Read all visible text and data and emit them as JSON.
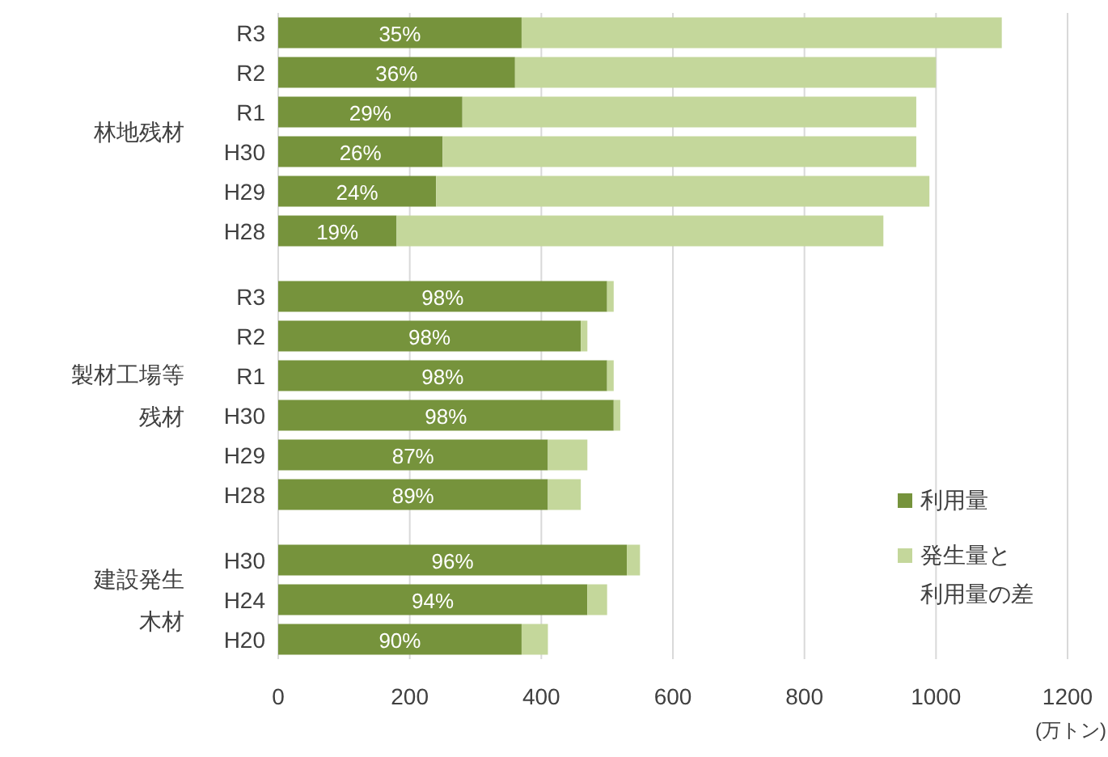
{
  "chart_data": [
    {
      "type": "bar",
      "orientation": "horizontal",
      "stacked": true,
      "ylabel": "林地残材",
      "categories": [
        "R3",
        "R2",
        "R1",
        "H30",
        "H29",
        "H28"
      ],
      "xlim": [
        0,
        1200
      ],
      "xticks": [
        0,
        200,
        400,
        600,
        800,
        1000,
        1200
      ],
      "grid": "x",
      "tick_labels": "y",
      "series": [
        {
          "color": "#76933c",
          "values": [
            370,
            360,
            280,
            250,
            240,
            180
          ]
        },
        {
          "color": "#c4d79b",
          "values": [
            730,
            640,
            690,
            720,
            750,
            740
          ]
        }
      ],
      "annotations": [
        {
          "text": "35%",
          "x": 185,
          "y": "R3"
        },
        {
          "text": "36%",
          "x": 180,
          "y": "R2"
        },
        {
          "text": "29%",
          "x": 140,
          "y": "R1"
        },
        {
          "text": "26%",
          "x": 125,
          "y": "H30"
        },
        {
          "text": "24%",
          "x": 120,
          "y": "H29"
        },
        {
          "text": "19%",
          "x": 90,
          "y": "H28"
        }
      ]
    },
    {
      "type": "bar",
      "orientation": "horizontal",
      "stacked": true,
      "ylabel": "製材工場等残材",
      "categories": [
        "R3",
        "R2",
        "R1",
        "H30",
        "H29",
        "H28"
      ],
      "xlim": [
        0,
        1200
      ],
      "xticks": [
        0,
        200,
        400,
        600,
        800,
        1000,
        1200
      ],
      "grid": "x",
      "tick_labels": "y",
      "series": [
        {
          "color": "#76933c",
          "values": [
            500,
            460,
            500,
            510,
            410,
            410
          ]
        },
        {
          "color": "#c4d79b",
          "values": [
            10,
            10,
            10,
            10,
            60,
            50
          ]
        }
      ],
      "annotations": [
        {
          "text": "98%",
          "x": 250,
          "y": "R3"
        },
        {
          "text": "98%",
          "x": 230,
          "y": "R2"
        },
        {
          "text": "98%",
          "x": 250,
          "y": "R1"
        },
        {
          "text": "98%",
          "x": 255,
          "y": "H30"
        },
        {
          "text": "87%",
          "x": 205,
          "y": "H29"
        },
        {
          "text": "89%",
          "x": 205,
          "y": "H28"
        }
      ]
    },
    {
      "type": "bar",
      "orientation": "horizontal",
      "stacked": true,
      "ylabel": "建設発生木材",
      "xlabel": "(万トン)",
      "categories": [
        "H30",
        "H24",
        "H20"
      ],
      "xlim": [
        0,
        1200
      ],
      "xticks": [
        0,
        200,
        400,
        600,
        800,
        1000,
        1200
      ],
      "grid": "x",
      "legend": "top right",
      "series": [
        {
          "name": "利用量",
          "color": "#76933c",
          "values": [
            530,
            470,
            370
          ]
        },
        {
          "name": "発生量と利用量の差",
          "color": "#c4d79b",
          "values": [
            20,
            30,
            40
          ]
        }
      ],
      "annotations": [
        {
          "text": "96%",
          "x": 265,
          "y": "H30"
        },
        {
          "text": "94%",
          "x": 235,
          "y": "H24"
        },
        {
          "text": "90%",
          "x": 185,
          "y": "H20"
        }
      ]
    }
  ]
}
